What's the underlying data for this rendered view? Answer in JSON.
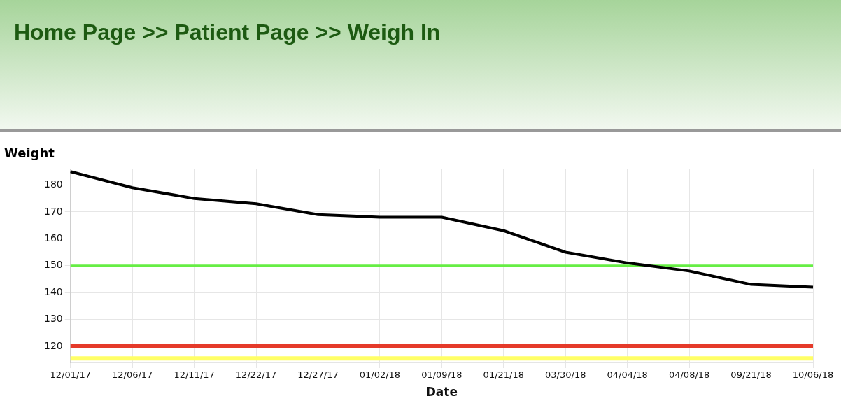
{
  "chart_data": {
    "type": "line",
    "title": "Home Page >> Patient Page >> Weigh In",
    "xlabel": "Date",
    "ylabel": "Weight",
    "categories": [
      "12/01/17",
      "12/06/17",
      "12/11/17",
      "12/22/17",
      "12/27/17",
      "01/02/18",
      "01/09/18",
      "01/21/18",
      "03/30/18",
      "04/04/18",
      "04/08/18",
      "09/21/18",
      "10/06/18"
    ],
    "series": [
      {
        "color": "#000000",
        "values": [
          185,
          179,
          175,
          173,
          169,
          168,
          168,
          163,
          155,
          151,
          148,
          143,
          142
        ]
      }
    ],
    "ylim": [
      114,
      186
    ],
    "yticks": [
      120,
      130,
      140,
      150,
      160,
      170,
      180
    ],
    "ref_lines": [
      {
        "axis": "y",
        "value": 150,
        "color": "#66ee44"
      },
      {
        "axis": "y",
        "value": 120,
        "color": "#e53a2a"
      },
      {
        "axis": "y",
        "value": 115.5,
        "color": "#ffff66"
      }
    ],
    "grid": true,
    "legend": false,
    "marker": "none",
    "line_style": "solid"
  }
}
